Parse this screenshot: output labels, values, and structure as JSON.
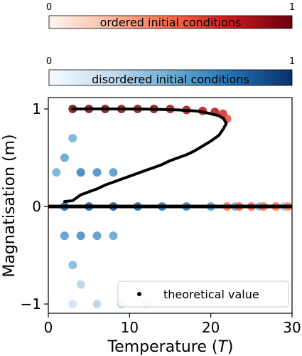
{
  "chart_data": {
    "type": "scatter",
    "title": "",
    "xlabel": "Temperature",
    "xlabel_symbol": "T",
    "ylabel": "Magnatisation (m)",
    "xlim": [
      0,
      30
    ],
    "ylim": [
      -1.1,
      1.1
    ],
    "x_ticks": [
      {
        "value": 0,
        "label": "0"
      },
      {
        "value": 10,
        "label": "10"
      },
      {
        "value": 20,
        "label": "20"
      },
      {
        "value": 30,
        "label": "30"
      }
    ],
    "y_ticks": [
      {
        "value": 1,
        "label": "1"
      },
      {
        "value": 0,
        "label": "0"
      },
      {
        "value": -1,
        "label": "−1"
      }
    ],
    "grid": false,
    "legend": {
      "placement": "bottom-right",
      "entries": [
        {
          "label": "theoretical value",
          "marker": "dot",
          "color": "#000000"
        }
      ]
    },
    "colorbars": [
      {
        "label": "ordered initial conditions",
        "min_label": "0",
        "max_label": "1",
        "color_low": "#fff0e8",
        "color_high": "#670010"
      },
      {
        "label": "disordered initial conditions",
        "min_label": "0",
        "max_label": "1",
        "color_low": "#f2f8fd",
        "color_high": "#08306b"
      }
    ],
    "series": [
      {
        "kind": "theoretical",
        "color": "#000000",
        "lower_branch": {
          "x": [
            0,
            30
          ],
          "y": [
            0,
            0
          ]
        },
        "upper_branch": {
          "x": [
            2.0,
            3.0,
            4.0,
            5.0,
            6.0,
            7.0,
            8.0,
            9.0,
            10.0,
            11.0,
            12.0,
            13.0,
            14.0,
            15.0,
            16.0,
            17.0,
            18.0,
            19.0,
            20.0,
            21.0,
            21.5,
            21.9,
            21.6,
            21.0,
            20.0,
            19.0,
            18.0,
            16.0,
            14.0,
            12.0,
            10.0,
            8.0,
            6.0,
            4.0,
            3.0
          ],
          "y": [
            0.05,
            0.06,
            0.12,
            0.15,
            0.18,
            0.22,
            0.25,
            0.28,
            0.31,
            0.34,
            0.37,
            0.4,
            0.43,
            0.47,
            0.5,
            0.53,
            0.57,
            0.62,
            0.67,
            0.73,
            0.79,
            0.85,
            0.9,
            0.93,
            0.95,
            0.97,
            0.98,
            0.99,
            0.995,
            0.998,
            0.999,
            1.0,
            1.0,
            1.0,
            1.0
          ]
        }
      },
      {
        "kind": "ordered initial conditions",
        "colormap": "Reds",
        "points": [
          [
            3.0,
            1.0,
            0.95
          ],
          [
            5.0,
            1.0,
            0.95
          ],
          [
            7.0,
            1.0,
            0.95
          ],
          [
            9.0,
            1.0,
            0.9
          ],
          [
            11.0,
            1.0,
            0.9
          ],
          [
            13.0,
            1.0,
            0.9
          ],
          [
            15.0,
            1.0,
            0.85
          ],
          [
            17.0,
            0.99,
            0.85
          ],
          [
            19.0,
            0.98,
            0.8
          ],
          [
            20.5,
            0.97,
            0.8
          ],
          [
            21.5,
            0.95,
            0.7
          ],
          [
            22.0,
            0.9,
            0.6
          ],
          [
            22.0,
            0.0,
            0.5
          ],
          [
            23.5,
            0.0,
            0.55
          ],
          [
            25.0,
            0.0,
            0.55
          ],
          [
            26.5,
            0.0,
            0.5
          ],
          [
            28.0,
            0.0,
            0.5
          ],
          [
            29.5,
            0.0,
            0.45
          ]
        ]
      },
      {
        "kind": "disordered initial conditions",
        "colormap": "Blues",
        "points": [
          [
            1.0,
            0.35,
            0.5
          ],
          [
            2.0,
            0.5,
            0.55
          ],
          [
            3.0,
            0.7,
            0.5
          ],
          [
            4.0,
            0.35,
            0.7
          ],
          [
            6.0,
            0.35,
            0.65
          ],
          [
            8.0,
            0.35,
            0.6
          ],
          [
            2.0,
            0.0,
            0.8
          ],
          [
            5.0,
            0.0,
            0.85
          ],
          [
            8.0,
            0.0,
            0.85
          ],
          [
            11.0,
            0.0,
            0.8
          ],
          [
            14.0,
            0.0,
            0.75
          ],
          [
            17.0,
            0.0,
            0.7
          ],
          [
            20.0,
            0.0,
            0.6
          ],
          [
            23.0,
            0.0,
            0.5
          ],
          [
            26.0,
            0.0,
            0.45
          ],
          [
            29.0,
            0.0,
            0.35
          ],
          [
            2.0,
            -0.3,
            0.6
          ],
          [
            4.0,
            -0.3,
            0.65
          ],
          [
            6.0,
            -0.3,
            0.6
          ],
          [
            8.0,
            -0.3,
            0.55
          ],
          [
            3.0,
            -0.6,
            0.45
          ],
          [
            4.0,
            -0.8,
            0.3
          ],
          [
            3.0,
            -1.0,
            0.2
          ],
          [
            6.0,
            -1.0,
            0.3
          ],
          [
            9.0,
            -1.0,
            0.35
          ],
          [
            12.0,
            -1.0,
            0.2
          ]
        ]
      }
    ]
  }
}
